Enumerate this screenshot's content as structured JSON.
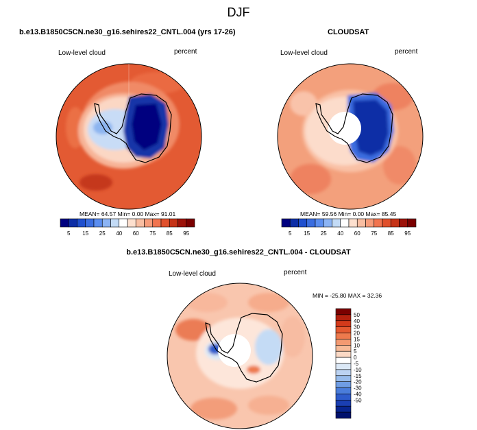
{
  "figure": {
    "title": "DJF"
  },
  "chart_data": [
    {
      "type": "heatmap",
      "title": "b.e13.B1850C5CN.ne30_g16.sehires22_CNTL.004 (yrs 17-26)",
      "left_label": "Low-level cloud",
      "right_label": "percent",
      "stats": {
        "mean_label": "MEAN=",
        "mean": "64.57",
        "min_label": "Min=",
        "min": "0.00",
        "max_label": "Max=",
        "max": "91.01"
      },
      "colorbar": {
        "orientation": "horizontal",
        "colors": [
          "#00007f",
          "#0d2ea6",
          "#1f4fce",
          "#3a6de0",
          "#5b8ef0",
          "#8cb4f4",
          "#c3dbf6",
          "#ffffff",
          "#fde0cf",
          "#f9bea2",
          "#f79c7a",
          "#f1744f",
          "#e0502c",
          "#c53317",
          "#9c1209",
          "#7a0000"
        ],
        "tick_labels": [
          "5",
          "15",
          "25",
          "40",
          "60",
          "75",
          "85",
          "95"
        ]
      }
    },
    {
      "type": "heatmap",
      "title": "CLOUDSAT",
      "left_label": "Low-level cloud",
      "right_label": "percent",
      "stats": {
        "mean_label": "MEAN=",
        "mean": "59.56",
        "min_label": "Min=",
        "min": "0.00",
        "max_label": "Max=",
        "max": "85.45"
      },
      "colorbar": {
        "orientation": "horizontal",
        "colors": [
          "#00007f",
          "#0d2ea6",
          "#1f4fce",
          "#3a6de0",
          "#5b8ef0",
          "#8cb4f4",
          "#c3dbf6",
          "#ffffff",
          "#fde0cf",
          "#f9bea2",
          "#f79c7a",
          "#f1744f",
          "#e0502c",
          "#c53317",
          "#9c1209",
          "#7a0000"
        ],
        "tick_labels": [
          "5",
          "15",
          "25",
          "40",
          "60",
          "75",
          "85",
          "95"
        ]
      }
    },
    {
      "type": "heatmap",
      "title": "b.e13.B1850C5CN.ne30_g16.sehires22_CNTL.004 - CLOUDSAT",
      "left_label": "Low-level cloud",
      "right_label": "percent",
      "stats": {
        "min_label": "MIN =",
        "min": "-25.80",
        "max_label": "MAX =",
        "max": "32.36"
      },
      "colorbar": {
        "orientation": "vertical",
        "colors": [
          "#7a0000",
          "#b4200e",
          "#d43a1b",
          "#e55a31",
          "#ee7a4d",
          "#f39a72",
          "#f7bb99",
          "#fbd9c5",
          "#ffffff",
          "#dbe8f6",
          "#bcd3f2",
          "#98bcec",
          "#6f9de4",
          "#4a7ddb",
          "#2e5ccc",
          "#1a3fb3",
          "#082590",
          "#00116c"
        ],
        "tick_labels": [
          "50",
          "40",
          "30",
          "20",
          "15",
          "10",
          "5",
          "0",
          "-5",
          "-10",
          "-15",
          "-20",
          "-30",
          "-40",
          "-50"
        ]
      }
    }
  ]
}
